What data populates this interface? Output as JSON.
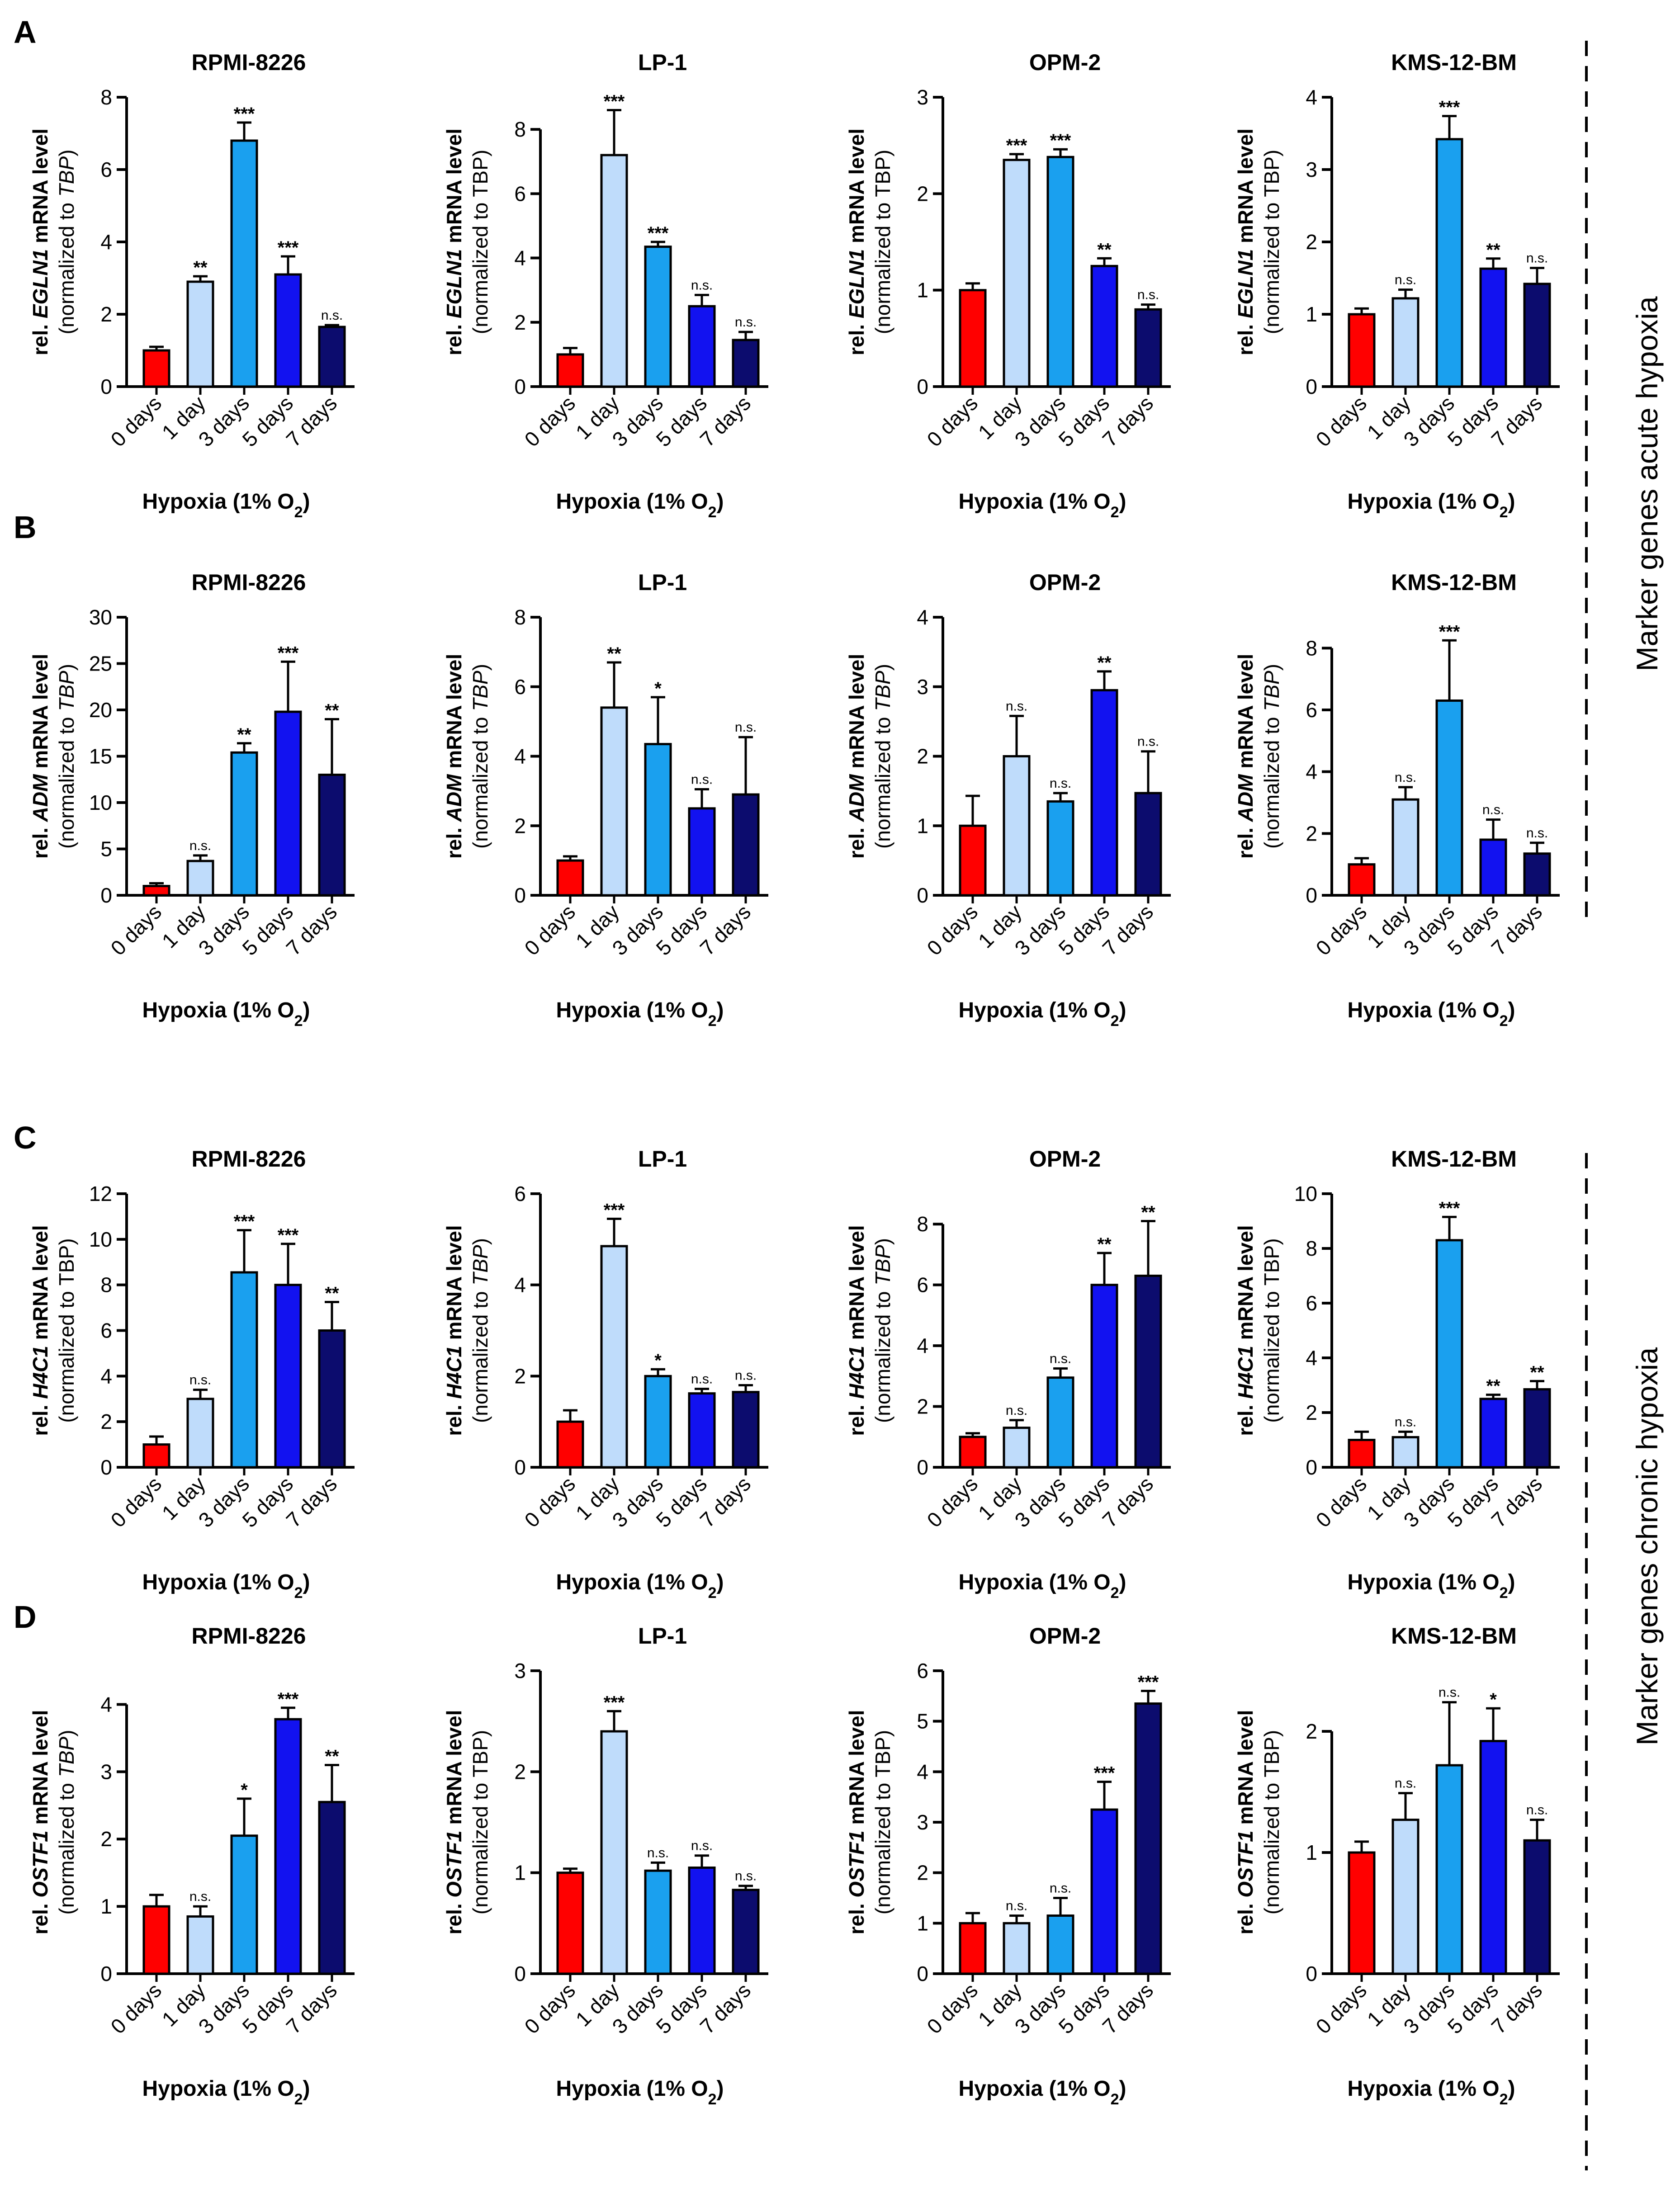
{
  "figure": {
    "categories": [
      "0 days",
      "1 day",
      "3 days",
      "5 days",
      "7 days"
    ],
    "bar_colors": [
      "#ff0000",
      "#bfdcfb",
      "#1aa0ef",
      "#1212f0",
      "#0c0c6e"
    ],
    "xlabel_main": "Hypoxia (1% O",
    "xlabel_sub": "2",
    "xlabel_end": ")",
    "side_labels": [
      "Marker genes acute hypoxia",
      "Marker genes chronic hypoxia"
    ]
  },
  "rows": [
    {
      "letter": "A",
      "ylabel_prefix": "rel. ",
      "gene": "EGLN1",
      "ylabel_suffix": " mRNA level"
    },
    {
      "letter": "B",
      "ylabel_prefix": "rel. ",
      "gene": "ADM",
      "ylabel_suffix": " mRNA level"
    },
    {
      "letter": "C",
      "ylabel_prefix": "rel. ",
      "gene": "H4C1",
      "ylabel_suffix": " mRNA level"
    },
    {
      "letter": "D",
      "ylabel_prefix": "rel. ",
      "gene": "OSTF1",
      "ylabel_suffix": " mRNA level"
    }
  ],
  "chart_data": [
    {
      "type": "bar",
      "row": 0,
      "col": 0,
      "title": "RPMI-8226",
      "ylabel_norm": "(normalized to ",
      "ylabel_ref": "TBP",
      "ylabel_ref_italic": true,
      "ylim": [
        0,
        8
      ],
      "yticks": [
        0,
        2,
        4,
        6,
        8
      ],
      "categories": [
        "0 days",
        "1 day",
        "3 days",
        "5 days",
        "7 days"
      ],
      "values": [
        1.0,
        2.9,
        6.8,
        3.1,
        1.65
      ],
      "errors": [
        0.1,
        0.15,
        0.5,
        0.5,
        0.05
      ],
      "significance": [
        "",
        "**",
        "***",
        "***",
        "n.s."
      ]
    },
    {
      "type": "bar",
      "row": 0,
      "col": 1,
      "title": "LP-1",
      "ylabel_norm": "(normalized to ",
      "ylabel_ref": "TBP",
      "ylabel_ref_italic": false,
      "ylim": [
        0,
        9
      ],
      "yticks": [
        0,
        2,
        4,
        6,
        8
      ],
      "categories": [
        "0 days",
        "1 day",
        "3 days",
        "5 days",
        "7 days"
      ],
      "values": [
        1.0,
        7.2,
        4.35,
        2.5,
        1.45
      ],
      "errors": [
        0.2,
        1.4,
        0.15,
        0.35,
        0.25
      ],
      "significance": [
        "",
        "***",
        "***",
        "n.s.",
        "n.s."
      ]
    },
    {
      "type": "bar",
      "row": 0,
      "col": 2,
      "title": "OPM-2",
      "ylabel_norm": "(normalized to ",
      "ylabel_ref": "TBP",
      "ylabel_ref_italic": false,
      "ylim": [
        0,
        3
      ],
      "yticks": [
        0,
        1,
        2,
        3
      ],
      "categories": [
        "0 days",
        "1 day",
        "3 days",
        "5 days",
        "7 days"
      ],
      "values": [
        1.0,
        2.35,
        2.38,
        1.25,
        0.8
      ],
      "errors": [
        0.07,
        0.06,
        0.08,
        0.08,
        0.05
      ],
      "significance": [
        "",
        "***",
        "***",
        "**",
        "n.s."
      ]
    },
    {
      "type": "bar",
      "row": 0,
      "col": 3,
      "title": "KMS-12-BM",
      "ylabel_norm": "(normalized to ",
      "ylabel_ref": "TBP",
      "ylabel_ref_italic": false,
      "ylim": [
        0,
        4
      ],
      "yticks": [
        0,
        1,
        2,
        3,
        4
      ],
      "categories": [
        "0 days",
        "1 day",
        "3 days",
        "5 days",
        "7 days"
      ],
      "values": [
        1.0,
        1.22,
        3.42,
        1.63,
        1.42
      ],
      "errors": [
        0.08,
        0.12,
        0.32,
        0.14,
        0.22
      ],
      "significance": [
        "",
        "n.s.",
        "***",
        "**",
        "n.s."
      ]
    },
    {
      "type": "bar",
      "row": 1,
      "col": 0,
      "title": "RPMI-8226",
      "ylabel_norm": "(normalized to ",
      "ylabel_ref": "TBP",
      "ylabel_ref_italic": true,
      "ylim": [
        0,
        30
      ],
      "yticks": [
        0,
        5,
        10,
        15,
        20,
        25,
        30
      ],
      "categories": [
        "0 days",
        "1 day",
        "3 days",
        "5 days",
        "7 days"
      ],
      "values": [
        1.0,
        3.7,
        15.4,
        19.8,
        13.0
      ],
      "errors": [
        0.3,
        0.6,
        1.0,
        5.4,
        6.0
      ],
      "significance": [
        "",
        "n.s.",
        "**",
        "***",
        "**"
      ]
    },
    {
      "type": "bar",
      "row": 1,
      "col": 1,
      "title": "LP-1",
      "ylabel_norm": "(normalized to ",
      "ylabel_ref": "TBP",
      "ylabel_ref_italic": true,
      "ylim": [
        0,
        8
      ],
      "yticks": [
        0,
        2,
        4,
        6,
        8
      ],
      "categories": [
        "0 days",
        "1 day",
        "3 days",
        "5 days",
        "7 days"
      ],
      "values": [
        1.0,
        5.4,
        4.35,
        2.5,
        2.9
      ],
      "errors": [
        0.12,
        1.3,
        1.35,
        0.55,
        1.65
      ],
      "significance": [
        "",
        "**",
        "*",
        "n.s.",
        "n.s."
      ]
    },
    {
      "type": "bar",
      "row": 1,
      "col": 2,
      "title": "OPM-2",
      "ylabel_norm": "(normalized to ",
      "ylabel_ref": "TBP",
      "ylabel_ref_italic": true,
      "ylim": [
        0,
        4
      ],
      "yticks": [
        0,
        1,
        2,
        3,
        4
      ],
      "categories": [
        "0 days",
        "1 day",
        "3 days",
        "5 days",
        "7 days"
      ],
      "values": [
        1.0,
        2.0,
        1.35,
        2.95,
        1.47
      ],
      "errors": [
        0.43,
        0.58,
        0.12,
        0.27,
        0.6
      ],
      "significance": [
        "",
        "n.s.",
        "n.s.",
        "**",
        "n.s."
      ]
    },
    {
      "type": "bar",
      "row": 1,
      "col": 3,
      "title": "KMS-12-BM",
      "ylabel_norm": "(normalized to ",
      "ylabel_ref": "TBP",
      "ylabel_ref_italic": true,
      "ylim": [
        0,
        9
      ],
      "yticks": [
        0,
        2,
        4,
        6,
        8
      ],
      "categories": [
        "0 days",
        "1 day",
        "3 days",
        "5 days",
        "7 days"
      ],
      "values": [
        1.0,
        3.1,
        6.3,
        1.8,
        1.35
      ],
      "errors": [
        0.2,
        0.4,
        1.95,
        0.65,
        0.35
      ],
      "significance": [
        "",
        "n.s.",
        "***",
        "n.s.",
        "n.s."
      ]
    },
    {
      "type": "bar",
      "row": 2,
      "col": 0,
      "title": "RPMI-8226",
      "ylabel_norm": "(normalized to TBP)",
      "ylabel_ref": "",
      "ylabel_ref_italic": false,
      "ylim": [
        0,
        12
      ],
      "yticks": [
        0,
        2,
        4,
        6,
        8,
        10,
        12
      ],
      "categories": [
        "0 days",
        "1 day",
        "3 days",
        "5 days",
        "7 days"
      ],
      "values": [
        1.0,
        3.0,
        8.55,
        8.0,
        6.0
      ],
      "errors": [
        0.35,
        0.4,
        1.85,
        1.8,
        1.25
      ],
      "significance": [
        "",
        "n.s.",
        "***",
        "***",
        "**"
      ]
    },
    {
      "type": "bar",
      "row": 2,
      "col": 1,
      "title": "LP-1",
      "ylabel_norm": "(normalized to ",
      "ylabel_ref": "TBP",
      "ylabel_ref_italic": true,
      "ylim": [
        0,
        6
      ],
      "yticks": [
        0,
        2,
        4,
        6
      ],
      "categories": [
        "0 days",
        "1 day",
        "3 days",
        "5 days",
        "7 days"
      ],
      "values": [
        1.0,
        4.85,
        2.0,
        1.62,
        1.65
      ],
      "errors": [
        0.25,
        0.6,
        0.15,
        0.1,
        0.15
      ],
      "significance": [
        "",
        "***",
        "*",
        "n.s.",
        "n.s."
      ]
    },
    {
      "type": "bar",
      "row": 2,
      "col": 2,
      "title": "OPM-2",
      "ylabel_norm": "(normalized to ",
      "ylabel_ref": "TBP",
      "ylabel_ref_italic": true,
      "ylim": [
        0,
        9
      ],
      "yticks": [
        0,
        2,
        4,
        6,
        8
      ],
      "categories": [
        "0 days",
        "1 day",
        "3 days",
        "5 days",
        "7 days"
      ],
      "values": [
        1.0,
        1.3,
        2.95,
        6.0,
        6.3
      ],
      "errors": [
        0.12,
        0.25,
        0.3,
        1.05,
        1.8
      ],
      "significance": [
        "",
        "n.s.",
        "n.s.",
        "**",
        "**"
      ]
    },
    {
      "type": "bar",
      "row": 2,
      "col": 3,
      "title": "KMS-12-BM",
      "ylabel_norm": "(normalized to TBP)",
      "ylabel_ref": "",
      "ylabel_ref_italic": false,
      "ylim": [
        0,
        10
      ],
      "yticks": [
        0,
        2,
        4,
        6,
        8,
        10
      ],
      "categories": [
        "0 days",
        "1 day",
        "3 days",
        "5 days",
        "7 days"
      ],
      "values": [
        1.0,
        1.1,
        8.3,
        2.5,
        2.85
      ],
      "errors": [
        0.3,
        0.2,
        0.85,
        0.15,
        0.3
      ],
      "significance": [
        "",
        "n.s.",
        "***",
        "**",
        "**"
      ]
    },
    {
      "type": "bar",
      "row": 3,
      "col": 0,
      "title": "RPMI-8226",
      "ylabel_norm": "(normalized to ",
      "ylabel_ref": "TBP",
      "ylabel_ref_italic": true,
      "ylim": [
        0,
        4.5
      ],
      "yticks": [
        0,
        1,
        2,
        3,
        4
      ],
      "categories": [
        "0 days",
        "1 day",
        "3 days",
        "5 days",
        "7 days"
      ],
      "values": [
        1.0,
        0.85,
        2.05,
        3.78,
        2.55
      ],
      "errors": [
        0.17,
        0.15,
        0.55,
        0.17,
        0.55
      ],
      "significance": [
        "",
        "n.s.",
        "*",
        "***",
        "**"
      ]
    },
    {
      "type": "bar",
      "row": 3,
      "col": 1,
      "title": "LP-1",
      "ylabel_norm": "(normalized to TBP)",
      "ylabel_ref": "",
      "ylabel_ref_italic": false,
      "ylim": [
        0,
        3
      ],
      "yticks": [
        0,
        1,
        2,
        3
      ],
      "categories": [
        "0 days",
        "1 day",
        "3 days",
        "5 days",
        "7 days"
      ],
      "values": [
        1.0,
        2.4,
        1.02,
        1.05,
        0.83
      ],
      "errors": [
        0.04,
        0.2,
        0.08,
        0.12,
        0.04
      ],
      "significance": [
        "",
        "***",
        "n.s.",
        "n.s.",
        "n.s."
      ]
    },
    {
      "type": "bar",
      "row": 3,
      "col": 2,
      "title": "OPM-2",
      "ylabel_norm": "(normalized to TBP)",
      "ylabel_ref": "",
      "ylabel_ref_italic": false,
      "ylim": [
        0,
        6
      ],
      "yticks": [
        0,
        1,
        2,
        3,
        4,
        5,
        6
      ],
      "categories": [
        "0 days",
        "1 day",
        "3 days",
        "5 days",
        "7 days"
      ],
      "values": [
        1.0,
        1.0,
        1.15,
        3.25,
        5.35
      ],
      "errors": [
        0.2,
        0.15,
        0.35,
        0.55,
        0.25
      ],
      "significance": [
        "",
        "n.s.",
        "n.s.",
        "***",
        "***"
      ]
    },
    {
      "type": "bar",
      "row": 3,
      "col": 3,
      "title": "KMS-12-BM",
      "ylabel_norm": "(normalized to TBP)",
      "ylabel_ref": "",
      "ylabel_ref_italic": false,
      "ylim": [
        0,
        2.5
      ],
      "yticks": [
        0,
        1,
        2
      ],
      "categories": [
        "0 days",
        "1 day",
        "3 days",
        "5 days",
        "7 days"
      ],
      "values": [
        1.0,
        1.27,
        1.72,
        1.92,
        1.1
      ],
      "errors": [
        0.09,
        0.22,
        0.52,
        0.27,
        0.17
      ],
      "significance": [
        "",
        "n.s.",
        "n.s.",
        "*",
        "n.s."
      ]
    }
  ]
}
